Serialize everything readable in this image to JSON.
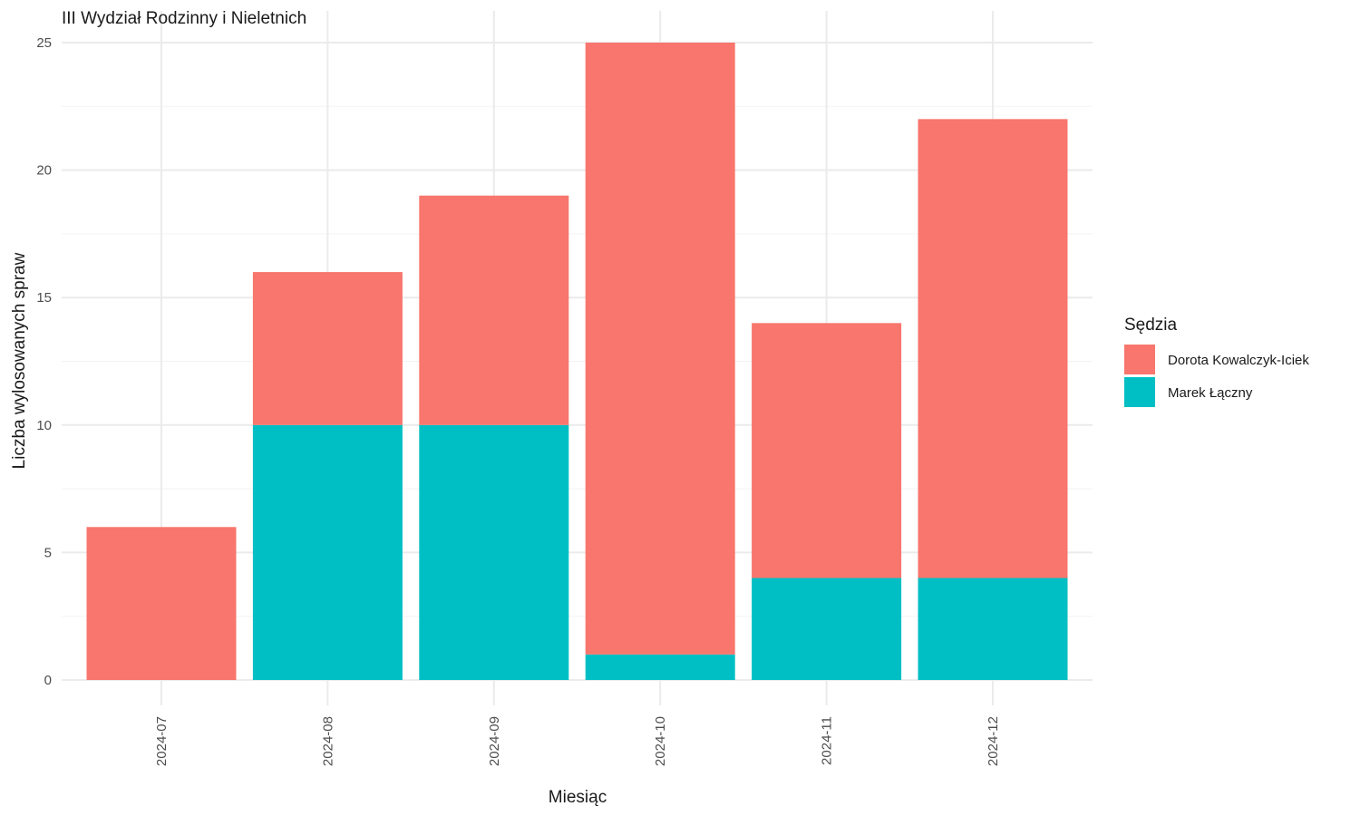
{
  "chart_data": {
    "type": "bar",
    "stacked": true,
    "title": "III Wydział Rodzinny i Nieletnich",
    "xlabel": "Miesiąc",
    "ylabel": "Liczba wylosowanych spraw",
    "categories": [
      "2024-07",
      "2024-08",
      "2024-09",
      "2024-10",
      "2024-11",
      "2024-12"
    ],
    "series": [
      {
        "name": "Marek Łączny",
        "color": "#00BFC4",
        "values": [
          0,
          10,
          10,
          1,
          4,
          4
        ]
      },
      {
        "name": "Dorota Kowalczyk-Iciek",
        "color": "#F8766D",
        "values": [
          6,
          6,
          9,
          24,
          10,
          18
        ]
      }
    ],
    "ylim": [
      0,
      25
    ],
    "yticks": [
      0,
      5,
      10,
      15,
      20,
      25
    ],
    "grid": true,
    "legend": {
      "title": "Sędzia",
      "position": "right",
      "order": [
        "Dorota Kowalczyk-Iciek",
        "Marek Łączny"
      ]
    }
  }
}
